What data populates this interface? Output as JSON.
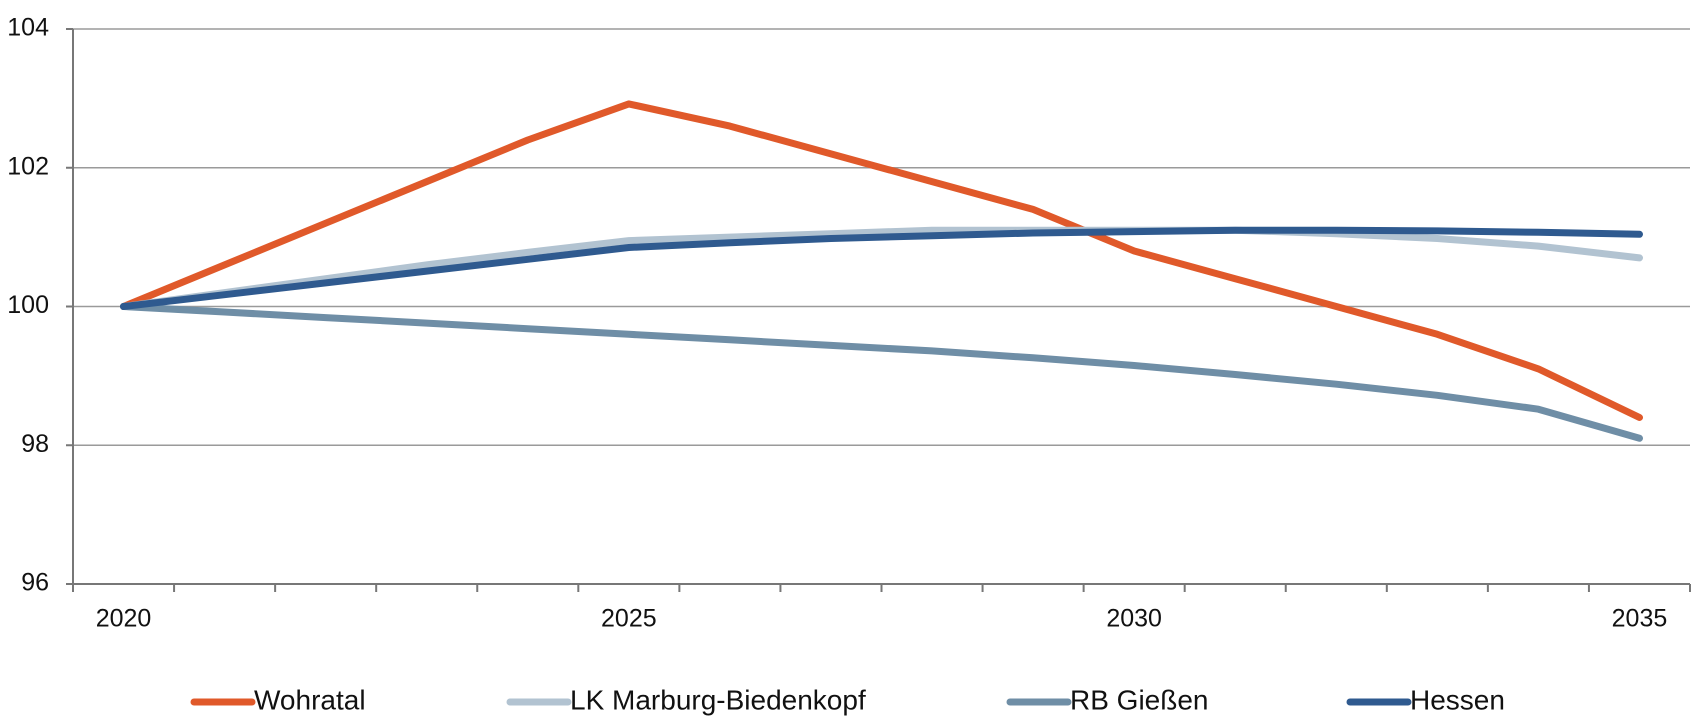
{
  "chart_data": {
    "type": "line",
    "categories": [
      "2020",
      null,
      null,
      null,
      null,
      "2025",
      null,
      null,
      null,
      null,
      "2030",
      null,
      null,
      null,
      null,
      "2035"
    ],
    "series": [
      {
        "name": "Wohratal",
        "color": "#e0592a",
        "values": [
          100,
          100.6,
          101.2,
          101.8,
          102.4,
          102.92,
          102.6,
          102.2,
          101.8,
          101.4,
          100.8,
          100.4,
          100.0,
          99.6,
          99.1,
          98.4
        ]
      },
      {
        "name": "LK Marburg-Biedenkopf",
        "color": "#b2c3d1",
        "values": [
          100,
          100.2,
          100.4,
          100.6,
          100.78,
          100.95,
          101.0,
          101.05,
          101.1,
          101.1,
          101.1,
          101.1,
          101.05,
          100.98,
          100.87,
          100.7
        ]
      },
      {
        "name": "RB Gießen",
        "color": "#6f8ea6",
        "values": [
          100,
          99.92,
          99.84,
          99.76,
          99.68,
          99.6,
          99.52,
          99.44,
          99.36,
          99.26,
          99.15,
          99.02,
          98.88,
          98.72,
          98.52,
          98.1
        ]
      },
      {
        "name": "Hessen",
        "color": "#2f5a8f",
        "values": [
          100,
          100.17,
          100.34,
          100.51,
          100.68,
          100.85,
          100.92,
          100.98,
          101.02,
          101.06,
          101.08,
          101.1,
          101.1,
          101.09,
          101.07,
          101.04
        ]
      }
    ],
    "ylim": [
      96,
      104
    ],
    "yticks": [
      96,
      98,
      100,
      102,
      104
    ],
    "grid": true,
    "legend": "bottom"
  }
}
